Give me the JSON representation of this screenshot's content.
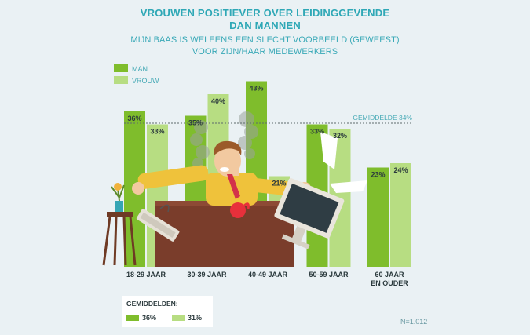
{
  "title_line1": "VROUWEN POSITIEVER OVER LEIDINGGEVENDE",
  "title_line2": "DAN MANNEN",
  "subtitle_line1": "MIJN BAAS IS WELEENS EEN SLECHT VOORBEELD (GEWEEST)",
  "subtitle_line2": "VOOR ZIJN/HAAR MEDEWERKERS",
  "colors": {
    "man": "#7fbd2c",
    "vrouw": "#b7dd82",
    "accent": "#2fa8b6"
  },
  "chart_data": {
    "type": "bar",
    "categories": [
      "18-29 JAAR",
      "30-39 JAAR",
      "40-49 JAAR",
      "50-59 JAAR",
      "60 JAAR\nEN OUDER"
    ],
    "category_lines": [
      [
        "18-29 JAAR"
      ],
      [
        "30-39 JAAR"
      ],
      [
        "40-49 JAAR"
      ],
      [
        "50-59 JAAR"
      ],
      [
        "60 JAAR",
        "EN OUDER"
      ]
    ],
    "series": [
      {
        "name": "MAN",
        "values": [
          36,
          35,
          43,
          33,
          23
        ],
        "labels": [
          "36%",
          "35%",
          "43%",
          "33%",
          "23%"
        ]
      },
      {
        "name": "VROUW",
        "values": [
          33,
          40,
          21,
          32,
          24
        ],
        "labels": [
          "33%",
          "40%",
          "21%",
          "32%",
          "24%"
        ]
      }
    ],
    "reference_line": {
      "value": 34,
      "label": "GEMIDDELDE 34%"
    },
    "ylim": [
      0,
      45
    ],
    "legend_position": "top-left"
  },
  "averages": {
    "title": "GEMIDDELDEN:",
    "man": "36%",
    "vrouw": "31%"
  },
  "n_label": "N=1.012"
}
